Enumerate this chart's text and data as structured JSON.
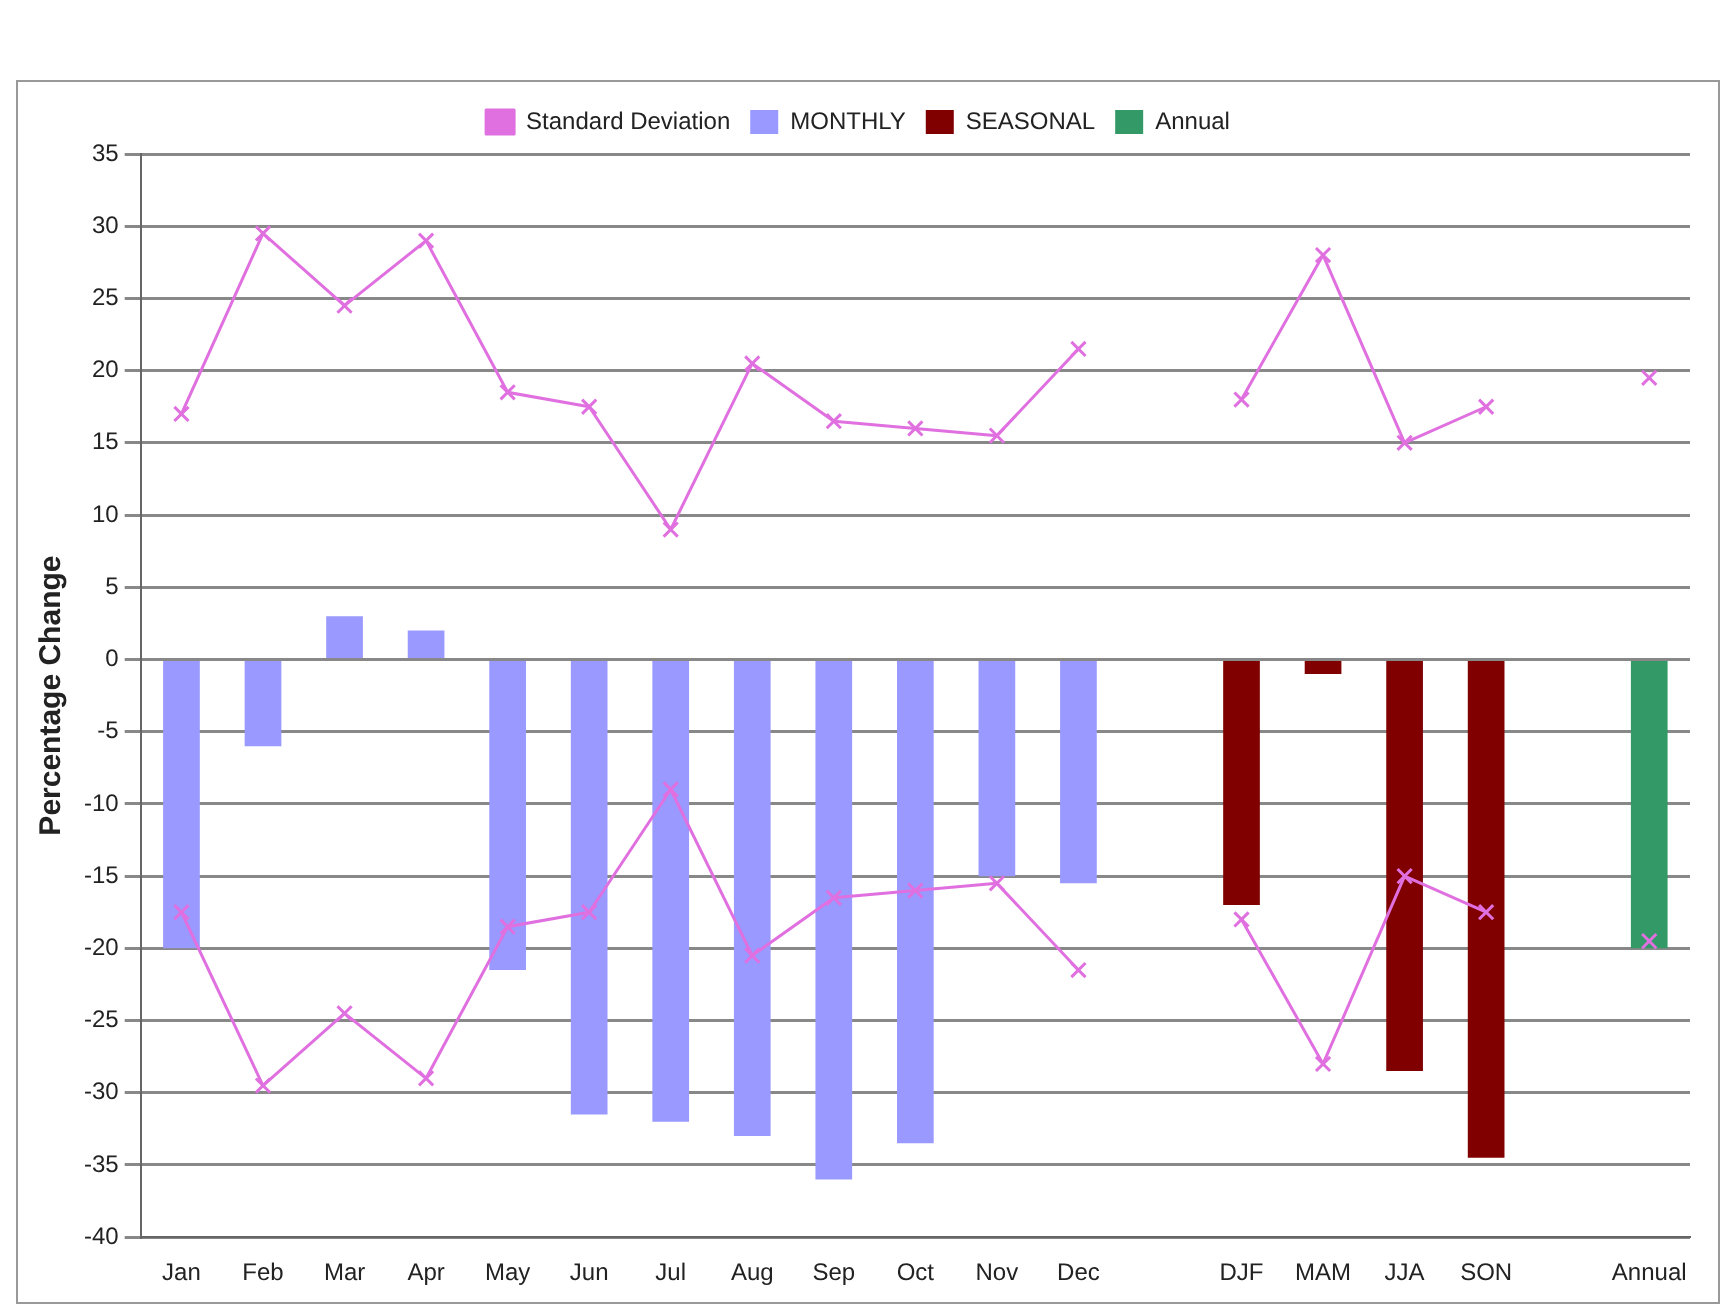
{
  "chart_data": {
    "type": "bar",
    "ylabel": "Percentage Change",
    "categories": [
      "Jan",
      "Feb",
      "Mar",
      "Apr",
      "May",
      "Jun",
      "Jul",
      "Aug",
      "Sep",
      "Oct",
      "Nov",
      "Dec",
      null,
      "DJF",
      "MAM",
      "JJA",
      "SON",
      null,
      "Annual"
    ],
    "series": [
      {
        "name": "MONTHLY",
        "color": "#9999ff",
        "values": [
          -20,
          -6,
          3,
          2,
          -21.5,
          -31.5,
          -32,
          -33,
          -36,
          -33.5,
          -15,
          -15.5,
          null,
          null,
          null,
          null,
          null,
          null,
          null
        ]
      },
      {
        "name": "SEASONAL",
        "color": "#800000",
        "values": [
          null,
          null,
          null,
          null,
          null,
          null,
          null,
          null,
          null,
          null,
          null,
          null,
          null,
          -17,
          -1,
          -28.5,
          -34.5,
          null,
          null
        ]
      },
      {
        "name": "Annual",
        "color": "#339966",
        "values": [
          null,
          null,
          null,
          null,
          null,
          null,
          null,
          null,
          null,
          null,
          null,
          null,
          null,
          null,
          null,
          null,
          null,
          null,
          -20
        ]
      },
      {
        "name": "Standard Deviation",
        "type": "line",
        "color": "#e070e0",
        "values": [
          17,
          29.5,
          24.5,
          29,
          18.5,
          17.5,
          9,
          20.5,
          16.5,
          16,
          15.5,
          21.5,
          null,
          18,
          28,
          15,
          17.5,
          null,
          19.5
        ]
      },
      {
        "type": "line",
        "color": "#e070e0",
        "values": [
          -17.5,
          -29.5,
          -24.5,
          -29,
          -18.5,
          -17.5,
          -9,
          -20.5,
          -16.5,
          -16,
          -15.5,
          -21.5,
          null,
          -18,
          -28,
          -15,
          -17.5,
          null,
          -19.5
        ]
      }
    ],
    "ylim": [
      -40,
      35
    ],
    "yticks": [
      -40,
      -35,
      -30,
      -25,
      -20,
      -15,
      -10,
      -5,
      0,
      5,
      10,
      15,
      20,
      25,
      30,
      35
    ],
    "grid": "y",
    "legend": "top",
    "marker": "cross",
    "line_style": "solid"
  }
}
